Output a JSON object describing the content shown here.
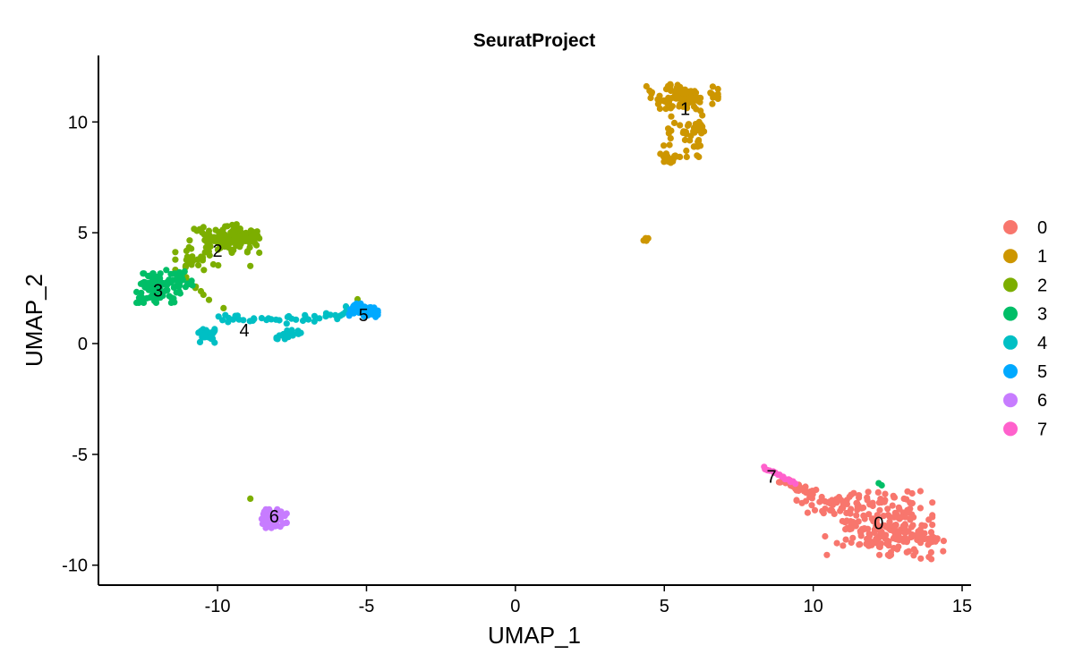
{
  "chart_data": {
    "type": "scatter",
    "title": "SeuratProject",
    "xlabel": "UMAP_1",
    "ylabel": "UMAP_2",
    "xlim": [
      -14,
      15.3
    ],
    "ylim": [
      -10.9,
      13.0
    ],
    "xticks": [
      -10,
      -5,
      0,
      5,
      10,
      15
    ],
    "yticks": [
      -10,
      -5,
      0,
      5,
      10
    ],
    "xtick_labels": [
      "-10",
      "-5",
      "0",
      "5",
      "10",
      "15"
    ],
    "ytick_labels": [
      "-10",
      "-5",
      "0",
      "5",
      "10"
    ],
    "grid": false,
    "legend_position": "right",
    "series": [
      {
        "name": "0",
        "color": "#F8766D",
        "label_at": [
          12.2,
          -8.1
        ],
        "blobs": [
          [
            12.2,
            -8.1,
            1.5,
            1.2,
            190
          ],
          [
            13.3,
            -8.8,
            0.9,
            0.8,
            60
          ],
          [
            10.4,
            -7.2,
            0.8,
            0.5,
            35
          ]
        ],
        "paths": [
          [
            [
              8.9,
              -6.2
            ],
            [
              10.0,
              -6.8
            ],
            30,
            0.15
          ]
        ]
      },
      {
        "name": "1",
        "color": "#CD9600",
        "label_at": [
          5.7,
          10.6
        ],
        "blobs": [
          [
            5.6,
            11.1,
            1.0,
            0.5,
            100
          ],
          [
            6.0,
            9.5,
            0.4,
            0.9,
            35
          ],
          [
            5.2,
            8.3,
            0.25,
            0.15,
            20
          ],
          [
            4.4,
            4.7,
            0.1,
            0.08,
            5
          ]
        ],
        "paths": [
          [
            [
              5.3,
              10.2
            ],
            [
              5.0,
              8.5
            ],
            10,
            0.15
          ]
        ]
      },
      {
        "name": "2",
        "color": "#7CAE00",
        "label_at": [
          -10.0,
          4.2
        ],
        "blobs": [
          [
            -9.8,
            4.7,
            1.0,
            0.5,
            110
          ],
          [
            -10.7,
            3.8,
            0.6,
            0.4,
            25
          ],
          [
            -9.3,
            4.9,
            0.5,
            0.4,
            30
          ]
        ],
        "paths": [
          [
            [
              -11.2,
              3.1
            ],
            [
              -10.3,
              2.0
            ],
            8,
            0.1
          ]
        ],
        "points": [
          [
            -8.9,
            3.5
          ],
          [
            -5.3,
            2.0
          ],
          [
            -9.8,
            1.6
          ],
          [
            -8.9,
            -7.0
          ]
        ]
      },
      {
        "name": "3",
        "color": "#00BE67",
        "label_at": [
          -12.0,
          2.4
        ],
        "blobs": [
          [
            -12.0,
            2.5,
            0.6,
            0.55,
            110
          ],
          [
            -11.3,
            2.8,
            0.4,
            0.5,
            25
          ]
        ],
        "points": [
          [
            12.2,
            -6.3
          ],
          [
            12.3,
            -6.4
          ]
        ]
      },
      {
        "name": "4",
        "color": "#00BFC4",
        "label_at": [
          -9.1,
          0.6
        ],
        "blobs": [
          [
            -10.4,
            0.4,
            0.25,
            0.3,
            35
          ],
          [
            -7.6,
            0.4,
            0.35,
            0.25,
            25
          ]
        ],
        "paths": [
          [
            [
              -10.1,
              1.1
            ],
            [
              -8.2,
              1.1
            ],
            18,
            0.18
          ],
          [
            [
              -8.0,
              1.1
            ],
            [
              -6.0,
              1.3
            ],
            20,
            0.2
          ],
          [
            [
              -6.0,
              1.2
            ],
            [
              -5.6,
              1.6
            ],
            6,
            0.1
          ]
        ]
      },
      {
        "name": "5",
        "color": "#00A9FF",
        "label_at": [
          -5.1,
          1.3
        ],
        "blobs": [
          [
            -5.1,
            1.5,
            0.4,
            0.25,
            90
          ]
        ]
      },
      {
        "name": "6",
        "color": "#C77CFF",
        "label_at": [
          -8.1,
          -7.8
        ],
        "blobs": [
          [
            -8.1,
            -7.9,
            0.35,
            0.35,
            70
          ]
        ]
      },
      {
        "name": "7",
        "color": "#FF61CC",
        "label_at": [
          8.6,
          -6.0
        ],
        "paths": [
          [
            [
              8.3,
              -5.6
            ],
            [
              9.4,
              -6.3
            ],
            18,
            0.06
          ]
        ]
      }
    ]
  },
  "legend": {
    "items": [
      {
        "label": "0",
        "color": "#F8766D"
      },
      {
        "label": "1",
        "color": "#CD9600"
      },
      {
        "label": "2",
        "color": "#7CAE00"
      },
      {
        "label": "3",
        "color": "#00BE67"
      },
      {
        "label": "4",
        "color": "#00BFC4"
      },
      {
        "label": "5",
        "color": "#00A9FF"
      },
      {
        "label": "6",
        "color": "#C77CFF"
      },
      {
        "label": "7",
        "color": "#FF61CC"
      }
    ]
  }
}
